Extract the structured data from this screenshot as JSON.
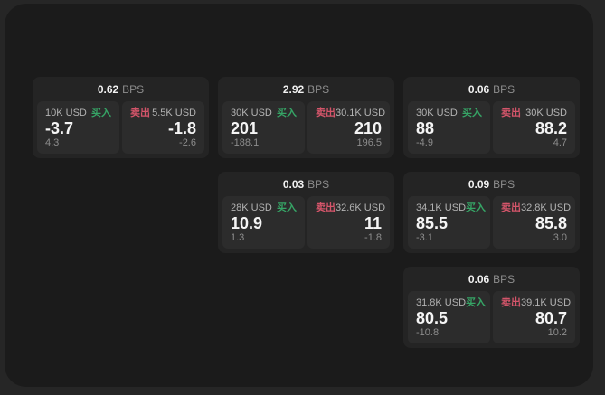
{
  "labels": {
    "bps_unit": "BPS",
    "buy": "买入",
    "sell": "卖出"
  },
  "colors": {
    "buy_green": "#36a566",
    "sell_red": "#d4556a",
    "window_bg": "#1b1b1b",
    "card_bg": "#242424",
    "panel_bg": "#2c2c2c"
  },
  "cards": [
    {
      "col": 1,
      "row": 1,
      "bps": "0.62",
      "buy": {
        "amount": "10K USD",
        "price": "-3.7",
        "delta": "4.3"
      },
      "sell": {
        "amount": "5.5K USD",
        "price": "-1.8",
        "delta": "-2.6"
      }
    },
    {
      "col": 2,
      "row": 1,
      "bps": "2.92",
      "buy": {
        "amount": "30K USD",
        "price": "201",
        "delta": "-188.1"
      },
      "sell": {
        "amount": "30.1K USD",
        "price": "210",
        "delta": "196.5"
      }
    },
    {
      "col": 3,
      "row": 1,
      "bps": "0.06",
      "buy": {
        "amount": "30K USD",
        "price": "88",
        "delta": "-4.9"
      },
      "sell": {
        "amount": "30K USD",
        "price": "88.2",
        "delta": "4.7"
      }
    },
    {
      "col": 2,
      "row": 2,
      "bps": "0.03",
      "buy": {
        "amount": "28K USD",
        "price": "10.9",
        "delta": "1.3"
      },
      "sell": {
        "amount": "32.6K USD",
        "price": "11",
        "delta": "-1.8"
      }
    },
    {
      "col": 3,
      "row": 2,
      "bps": "0.09",
      "buy": {
        "amount": "34.1K USD",
        "price": "85.5",
        "delta": "-3.1"
      },
      "sell": {
        "amount": "32.8K USD",
        "price": "85.8",
        "delta": "3.0"
      }
    },
    {
      "col": 3,
      "row": 3,
      "bps": "0.06",
      "buy": {
        "amount": "31.8K USD",
        "price": "80.5",
        "delta": "-10.8"
      },
      "sell": {
        "amount": "39.1K USD",
        "price": "80.7",
        "delta": "10.2"
      }
    }
  ]
}
